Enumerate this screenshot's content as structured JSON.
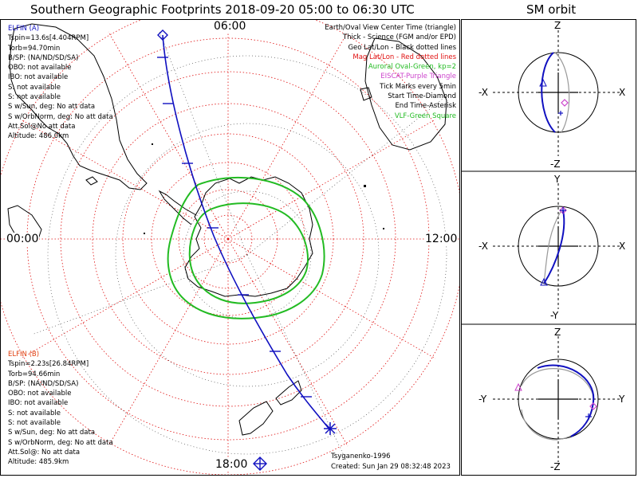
{
  "title": "Southern Geographic Footprints 2018-09-20 05:00 to 06:30 UTC",
  "orbit_title": "SM orbit",
  "local_time_labels": {
    "top": "06:00",
    "left": "00:00",
    "right": "12:00",
    "bottom": "18:00"
  },
  "probe_a": {
    "name": "ELFIN (A)",
    "lines": [
      "Tspin=13.6s[4.404RPM]",
      "Torb=94.70min",
      "B/SP: (NA/ND/SD/SA)",
      "OBO: not available",
      "IBO: not available",
      "S: not available",
      "S: not available",
      "S w/Sun, deg: No att data",
      "S w/OrbNorm, deg: No att data",
      "Att.Sol@No att data",
      "Altitude: 486.0km"
    ]
  },
  "probe_b": {
    "name": "ELFIN (B)",
    "lines": [
      "Tspin=2.23s[26.84RPM]",
      "Torb=94.66min",
      "B/SP: (NA/ND/SD/SA)",
      "OBO: not available",
      "IBO: not available",
      "S: not available",
      "S: not available",
      "S w/Sun, deg: No att data",
      "S w/OrbNorm, deg: No att data",
      "Att.Sol@: No att data",
      "Altitude: 485.9km"
    ]
  },
  "legend": [
    {
      "text": "Earth/Oval View Center Time (triangle)",
      "color": "#000000"
    },
    {
      "text": "Thick - Science (FGM and/or EPD)",
      "color": "#000000"
    },
    {
      "text": "Geo Lat/Lon - Black dotted lines",
      "color": "#000000"
    },
    {
      "text": "Mag Lat/Lon - Red dotted lines",
      "color": "#e01010"
    },
    {
      "text": "Auroral Oval-Green, kp=2",
      "color": "#22bb22"
    },
    {
      "text": "EISCAT-Purple Triangle",
      "color": "#cc44cc"
    },
    {
      "text": "Tick Marks every 5min",
      "color": "#000000"
    },
    {
      "text": "Start Time-Diamond",
      "color": "#000000"
    },
    {
      "text": "End Time-Asterisk",
      "color": "#000000"
    },
    {
      "text": "VLF-Green Square",
      "color": "#22bb22"
    }
  ],
  "credit": {
    "author": "Tsyganenko-1996",
    "created": "Created: Sun Jan 29 08:32:48 2023"
  },
  "orbit_panels": [
    {
      "top": "Z",
      "bottom": "-Z",
      "left": "-X",
      "right": "X"
    },
    {
      "top": "Y",
      "bottom": "-Y",
      "left": "-X",
      "right": "X"
    },
    {
      "top": "Z",
      "bottom": "-Z",
      "left": "-Y",
      "right": "Y"
    }
  ],
  "colors": {
    "probe_a": "#1010c0",
    "probe_b": "#e04010",
    "mag_grid": "#e01010",
    "aurora": "#22bb22",
    "eiscat": "#cc44cc",
    "orbit_shadow": "#999999"
  }
}
